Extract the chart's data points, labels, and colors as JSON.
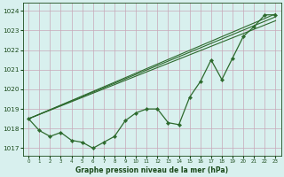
{
  "x": [
    0,
    1,
    2,
    3,
    4,
    5,
    6,
    7,
    8,
    9,
    10,
    11,
    12,
    13,
    14,
    15,
    16,
    17,
    18,
    19,
    20,
    21,
    22,
    23
  ],
  "pressure": [
    1018.5,
    1017.9,
    1017.6,
    1017.8,
    1017.4,
    1017.3,
    1017.0,
    1017.3,
    1017.6,
    1018.4,
    1018.8,
    1019.0,
    1019.0,
    1018.3,
    1018.2,
    1019.6,
    1020.4,
    1021.5,
    1020.5,
    1021.6,
    1022.7,
    1023.2,
    1023.8,
    1023.8
  ],
  "trend_line1_x": [
    0,
    23
  ],
  "trend_line1_y": [
    1018.5,
    1023.85
  ],
  "trend_line2_x": [
    0,
    23
  ],
  "trend_line2_y": [
    1018.5,
    1023.7
  ],
  "trend_line3_x": [
    0,
    23
  ],
  "trend_line3_y": [
    1018.5,
    1023.5
  ],
  "yticks": [
    1017,
    1018,
    1019,
    1020,
    1021,
    1022,
    1023,
    1024
  ],
  "xticks": [
    0,
    1,
    2,
    3,
    4,
    5,
    6,
    7,
    8,
    9,
    10,
    11,
    12,
    13,
    14,
    15,
    16,
    17,
    18,
    19,
    20,
    21,
    22,
    23
  ],
  "xtick_labels": [
    "0",
    "1",
    "2",
    "3",
    "4",
    "5",
    "6",
    "7",
    "8",
    "9",
    "10",
    "11",
    "12",
    "13",
    "14",
    "15",
    "16",
    "17",
    "18",
    "19",
    "20",
    "21",
    "22",
    "23"
  ],
  "xlabel": "Graphe pression niveau de la mer (hPa)",
  "ylim": [
    1016.6,
    1024.4
  ],
  "xlim": [
    -0.5,
    23.5
  ],
  "line_color": "#2d6a2d",
  "bg_color": "#d8f0ee",
  "grid_color_h": "#c8a8b8",
  "grid_color_v": "#c8a8b8",
  "label_color": "#1a4a1a",
  "marker": "D",
  "markersize": 2.2
}
